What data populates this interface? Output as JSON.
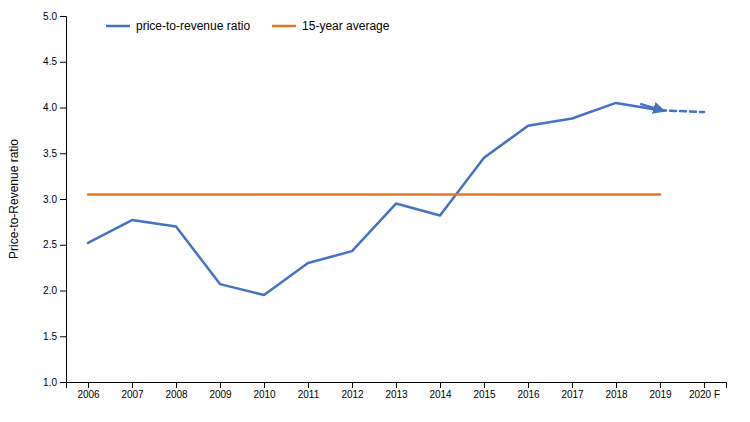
{
  "chart_data": {
    "type": "line",
    "ylabel": "Price-to-Revenue ratio",
    "xlim": [
      2005.5,
      2020.5
    ],
    "xticks": [
      2006,
      2007,
      2008,
      2009,
      2010,
      2011,
      2012,
      2013,
      2014,
      2015,
      2016,
      2017,
      2018,
      2019,
      {
        "value": 2020,
        "label": "2020 F"
      }
    ],
    "ylim": [
      1.0,
      5.0
    ],
    "yticks": [
      {
        "value": 1.0,
        "label": "1.0"
      },
      1.5,
      {
        "value": 2.0,
        "label": "2.0"
      },
      2.5,
      {
        "value": 3.0,
        "label": "3.0"
      },
      3.5,
      {
        "value": 4.0,
        "label": "4.0"
      },
      4.5,
      {
        "value": 5.0,
        "label": "5.0"
      }
    ],
    "grid": false,
    "legend": "upper left",
    "series": [
      {
        "name": "price-to-revenue ratio",
        "color": "#4472C4",
        "line_style": "solid",
        "x": [
          2006,
          2007,
          2008,
          2009,
          2010,
          2011,
          2012,
          2013,
          2014,
          2015,
          2016,
          2017,
          2018,
          2019
        ],
        "values": [
          2.52,
          2.77,
          2.7,
          2.07,
          1.95,
          2.3,
          2.43,
          2.95,
          2.82,
          3.45,
          3.8,
          3.88,
          4.05,
          3.97
        ]
      },
      {
        "color": "#4472C4",
        "line_style": "dashed",
        "x": [
          2019,
          2020
        ],
        "values": [
          3.97,
          3.95
        ]
      },
      {
        "name": "15-year average",
        "color": "#E87722",
        "line_style": "solid",
        "x": [
          2006,
          2019
        ],
        "values": [
          3.05,
          3.05
        ]
      }
    ],
    "annotations": [
      {
        "type": "arrow",
        "color": "#4472C4",
        "x": [
          2018.55,
          2019.1
        ],
        "values": [
          4.04,
          3.96
        ]
      }
    ]
  }
}
